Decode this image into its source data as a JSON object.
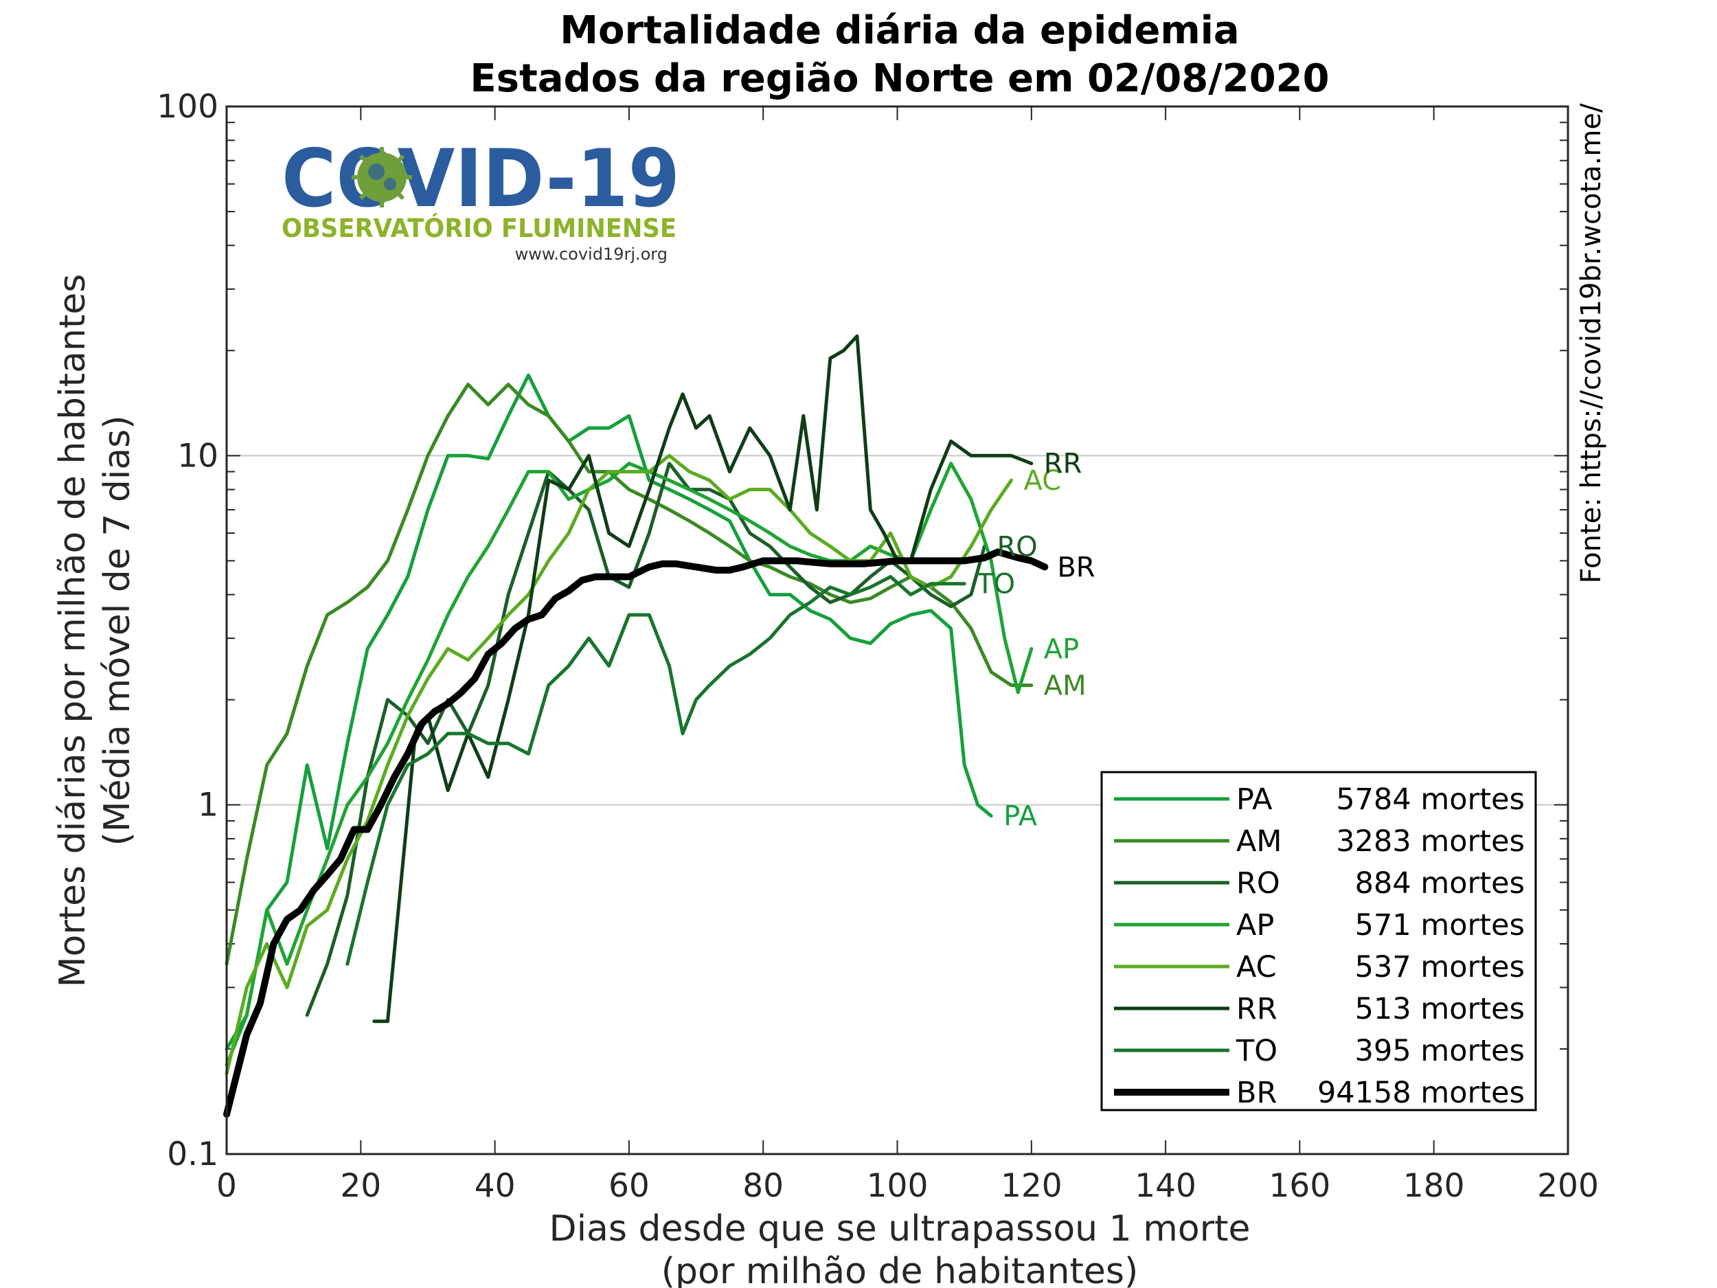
{
  "chart_data": {
    "type": "line",
    "title": [
      "Mortalidade diária da epidemia",
      "Estados da região Norte em 02/08/2020"
    ],
    "xlabel": [
      "Dias desde que se ultrapassou 1 morte",
      "(por milhão de habitantes)"
    ],
    "ylabel": [
      "Mortes diárias por milhão de habitantes",
      "(Média móvel de 7 dias)"
    ],
    "source": "Fonte: https://covid19br.wcota.me/",
    "xlim": [
      0,
      200
    ],
    "ylim": [
      0.1,
      100
    ],
    "yscale": "log",
    "xticks": [
      0,
      20,
      40,
      60,
      80,
      100,
      120,
      140,
      160,
      180,
      200
    ],
    "yticks": [
      0.1,
      1,
      10,
      100
    ],
    "ytick_labels": [
      "0.1",
      "1",
      "10",
      "100"
    ],
    "grid": "horizontal at major y ticks",
    "legend_position": "lower-right",
    "series": [
      {
        "name": "PA",
        "legend_count": "5784 mortes",
        "color": "#14a03c",
        "width": 5,
        "end_label": "PA",
        "x": [
          0,
          3,
          6,
          9,
          12,
          15,
          18,
          21,
          24,
          27,
          30,
          33,
          36,
          39,
          42,
          45,
          48,
          51,
          54,
          57,
          60,
          63,
          66,
          69,
          72,
          75,
          78,
          81,
          84,
          87,
          90,
          93,
          96,
          99,
          102,
          105,
          108,
          110,
          112,
          114
        ],
        "y": [
          0.2,
          0.25,
          0.5,
          0.6,
          1.3,
          0.75,
          1.5,
          2.8,
          3.5,
          4.5,
          7,
          10,
          10,
          9.8,
          13,
          17,
          13,
          11,
          12,
          12,
          13,
          8.5,
          8,
          7.5,
          7,
          6.5,
          5,
          4,
          4,
          3.6,
          3.4,
          3,
          2.9,
          3.3,
          3.5,
          3.6,
          3.2,
          1.3,
          1.0,
          0.93
        ]
      },
      {
        "name": "AM",
        "legend_count": "3283 mortes",
        "color": "#3a8a23",
        "width": 5,
        "end_label": "AM",
        "x": [
          0,
          3,
          6,
          9,
          12,
          15,
          18,
          21,
          24,
          27,
          30,
          33,
          36,
          39,
          42,
          45,
          48,
          51,
          54,
          57,
          60,
          63,
          66,
          69,
          72,
          75,
          78,
          81,
          84,
          87,
          90,
          93,
          96,
          99,
          102,
          105,
          108,
          111,
          114,
          117,
          120
        ],
        "y": [
          0.35,
          0.7,
          1.3,
          1.6,
          2.5,
          3.5,
          3.8,
          4.2,
          5,
          7,
          10,
          13,
          16,
          14,
          16,
          14,
          13,
          11,
          9,
          9,
          8,
          7.5,
          7,
          6.5,
          6,
          5.5,
          5,
          4.8,
          4.5,
          4.3,
          4,
          3.8,
          3.9,
          4.2,
          4.5,
          4.2,
          3.8,
          3.2,
          2.4,
          2.2,
          2.2
        ]
      },
      {
        "name": "RO",
        "legend_count": "884 mortes",
        "color": "#1b5e28",
        "width": 5,
        "end_label": "RO",
        "x": [
          12,
          15,
          18,
          21,
          24,
          27,
          30,
          33,
          36,
          39,
          42,
          45,
          48,
          51,
          54,
          57,
          60,
          63,
          66,
          69,
          72,
          75,
          78,
          81,
          84,
          87,
          90,
          93,
          96,
          99,
          102,
          105,
          108,
          111,
          113
        ],
        "y": [
          0.25,
          0.35,
          0.55,
          1.2,
          2,
          1.8,
          1.5,
          2,
          1.6,
          2.2,
          4,
          6,
          9,
          8,
          7,
          4.5,
          4.2,
          6,
          9.5,
          8,
          8,
          7.5,
          6,
          5.5,
          4.8,
          4.2,
          3.8,
          4,
          4.5,
          5,
          4.5,
          4,
          3.7,
          4,
          5.5
        ]
      },
      {
        "name": "AP",
        "legend_count": "571 mortes",
        "color": "#1fa434",
        "width": 5,
        "end_label": "AP",
        "x": [
          0,
          3,
          6,
          9,
          12,
          15,
          18,
          21,
          24,
          27,
          30,
          33,
          36,
          39,
          42,
          45,
          48,
          51,
          54,
          57,
          60,
          63,
          66,
          69,
          72,
          75,
          78,
          81,
          84,
          87,
          90,
          93,
          96,
          99,
          102,
          105,
          108,
          111,
          114,
          116,
          118,
          120
        ],
        "y": [
          0.18,
          0.25,
          0.5,
          0.35,
          0.5,
          0.7,
          1.0,
          1.2,
          1.5,
          2.0,
          2.6,
          3.5,
          4.5,
          5.5,
          7,
          9,
          9,
          7.5,
          8,
          8.5,
          9.5,
          9,
          8.5,
          8,
          7.5,
          7,
          6.5,
          6,
          5.5,
          5.2,
          5,
          5,
          5.5,
          5.2,
          5,
          7,
          9.5,
          7.5,
          5,
          3,
          2.1,
          2.8
        ]
      },
      {
        "name": "AC",
        "legend_count": "537 mortes",
        "color": "#5bab20",
        "width": 5,
        "end_label": "AC",
        "x": [
          0,
          3,
          6,
          9,
          12,
          15,
          18,
          21,
          24,
          27,
          30,
          33,
          36,
          39,
          42,
          45,
          48,
          51,
          54,
          57,
          60,
          63,
          66,
          69,
          72,
          75,
          78,
          81,
          84,
          87,
          90,
          93,
          96,
          99,
          102,
          105,
          108,
          111,
          114,
          117
        ],
        "y": [
          0.17,
          0.3,
          0.4,
          0.3,
          0.45,
          0.5,
          0.7,
          0.9,
          1.3,
          1.8,
          2.3,
          2.8,
          2.6,
          3.0,
          3.5,
          4,
          5,
          6,
          8,
          9,
          9,
          9,
          10,
          9,
          8.5,
          7.5,
          8,
          8,
          7,
          6,
          5.5,
          5,
          5,
          6,
          4.5,
          4.2,
          4.5,
          5.5,
          7,
          8.5
        ]
      },
      {
        "name": "RR",
        "legend_count": "513 mortes",
        "color": "#0e3d16",
        "width": 5,
        "end_label": "RR",
        "x": [
          22,
          24,
          26,
          28,
          30,
          33,
          36,
          39,
          42,
          45,
          48,
          51,
          54,
          57,
          60,
          63,
          66,
          68,
          70,
          72,
          75,
          78,
          81,
          84,
          86,
          88,
          90,
          92,
          94,
          96,
          98,
          100,
          102,
          105,
          108,
          111,
          114,
          117,
          120
        ],
        "y": [
          0.24,
          0.24,
          0.6,
          1.5,
          1.8,
          1.1,
          1.6,
          1.2,
          2.0,
          3.5,
          8.5,
          8,
          10,
          6,
          5.5,
          8,
          12,
          15,
          12,
          13,
          9,
          12,
          10,
          7,
          13,
          7,
          19,
          20,
          22,
          7,
          6,
          5,
          5,
          8,
          11,
          10,
          10,
          10,
          9.5
        ]
      },
      {
        "name": "TO",
        "legend_count": "395 mortes",
        "color": "#17752c",
        "width": 5,
        "end_label": "TO",
        "x": [
          18,
          21,
          24,
          27,
          30,
          33,
          36,
          39,
          42,
          45,
          48,
          51,
          54,
          57,
          60,
          63,
          66,
          68,
          70,
          72,
          75,
          78,
          81,
          84,
          87,
          90,
          93,
          96,
          99,
          102,
          105,
          108,
          110
        ],
        "y": [
          0.35,
          0.6,
          1.0,
          1.3,
          1.4,
          1.6,
          1.6,
          1.5,
          1.5,
          1.4,
          2.2,
          2.5,
          3.0,
          2.5,
          3.5,
          3.5,
          2.5,
          1.6,
          2.0,
          2.2,
          2.5,
          2.7,
          3.0,
          3.5,
          3.8,
          4.2,
          4.0,
          4.2,
          4.5,
          4.0,
          4.3,
          4.3,
          4.3
        ]
      },
      {
        "name": "BR",
        "legend_count": "94158 mortes",
        "color": "#000000",
        "width": 10,
        "end_label": "BR",
        "x": [
          0,
          3,
          5,
          7,
          9,
          11,
          13,
          15,
          17,
          19,
          21,
          23,
          25,
          27,
          29,
          31,
          33,
          35,
          37,
          39,
          41,
          43,
          45,
          47,
          49,
          51,
          53,
          55,
          57,
          60,
          63,
          65,
          67,
          70,
          73,
          75,
          77,
          80,
          85,
          90,
          95,
          100,
          105,
          110,
          113,
          115,
          118,
          120,
          122
        ],
        "y": [
          0.13,
          0.22,
          0.27,
          0.4,
          0.47,
          0.5,
          0.57,
          0.63,
          0.7,
          0.85,
          0.85,
          1.0,
          1.2,
          1.4,
          1.7,
          1.85,
          1.95,
          2.1,
          2.3,
          2.7,
          2.9,
          3.2,
          3.4,
          3.5,
          3.9,
          4.1,
          4.4,
          4.5,
          4.5,
          4.5,
          4.8,
          4.9,
          4.9,
          4.8,
          4.7,
          4.7,
          4.8,
          5.0,
          5.0,
          4.9,
          4.9,
          5.0,
          5.0,
          5.0,
          5.1,
          5.3,
          5.1,
          5.0,
          4.8
        ]
      }
    ]
  },
  "logo": {
    "main": "COVID-19",
    "sub": "OBSERVATÓRIO FLUMINENSE",
    "url": "www.covid19rj.org"
  }
}
